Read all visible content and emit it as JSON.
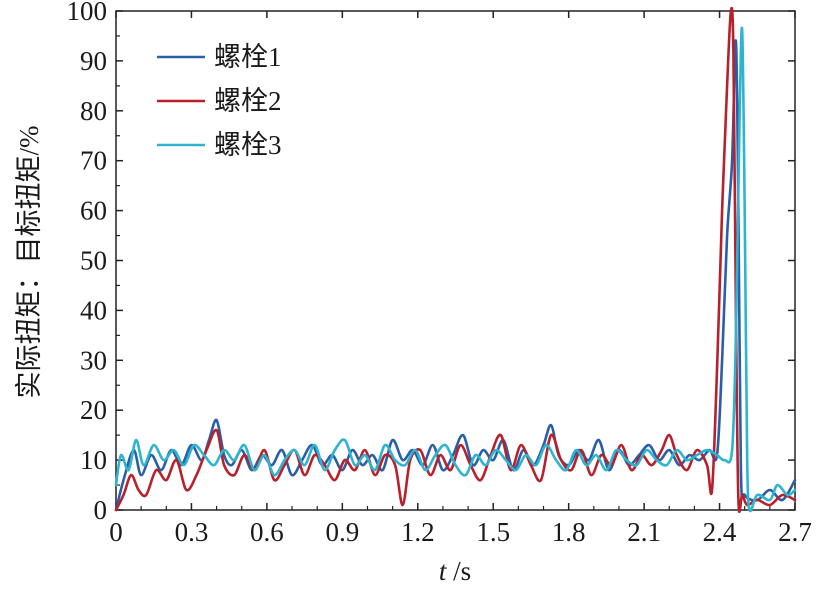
{
  "chart_data": {
    "type": "line",
    "xlabel_italic": "t",
    "xlabel_unit": " /s",
    "ylabel": "实际扭矩：目标扭矩/%",
    "xlim": [
      0,
      2.7
    ],
    "ylim": [
      0,
      100
    ],
    "x_ticks": [
      "0",
      "0.3",
      "0.6",
      "0.9",
      "1.2",
      "1.5",
      "1.8",
      "2.1",
      "2.4",
      "2.7"
    ],
    "y_ticks": [
      "0",
      "10",
      "20",
      "30",
      "40",
      "50",
      "60",
      "70",
      "80",
      "90",
      "100"
    ],
    "legend_position": "top-left",
    "grid": false,
    "series": [
      {
        "name": "螺栓1",
        "color": "#2a5fa8",
        "points": [
          [
            0.0,
            0
          ],
          [
            0.03,
            6
          ],
          [
            0.07,
            12
          ],
          [
            0.1,
            7
          ],
          [
            0.14,
            11
          ],
          [
            0.18,
            8
          ],
          [
            0.22,
            12
          ],
          [
            0.26,
            9
          ],
          [
            0.3,
            13
          ],
          [
            0.34,
            10
          ],
          [
            0.37,
            14
          ],
          [
            0.4,
            18
          ],
          [
            0.43,
            11
          ],
          [
            0.46,
            9
          ],
          [
            0.5,
            12
          ],
          [
            0.54,
            8
          ],
          [
            0.58,
            11
          ],
          [
            0.62,
            9
          ],
          [
            0.66,
            12
          ],
          [
            0.7,
            7
          ],
          [
            0.74,
            10
          ],
          [
            0.78,
            13
          ],
          [
            0.82,
            9
          ],
          [
            0.86,
            11
          ],
          [
            0.9,
            8
          ],
          [
            0.94,
            12
          ],
          [
            0.98,
            9
          ],
          [
            1.02,
            11
          ],
          [
            1.06,
            8
          ],
          [
            1.1,
            14
          ],
          [
            1.14,
            10
          ],
          [
            1.18,
            12
          ],
          [
            1.22,
            9
          ],
          [
            1.26,
            13
          ],
          [
            1.3,
            8
          ],
          [
            1.34,
            11
          ],
          [
            1.38,
            15
          ],
          [
            1.42,
            9
          ],
          [
            1.46,
            12
          ],
          [
            1.5,
            10
          ],
          [
            1.54,
            14
          ],
          [
            1.58,
            8
          ],
          [
            1.62,
            12
          ],
          [
            1.66,
            9
          ],
          [
            1.7,
            13
          ],
          [
            1.73,
            17
          ],
          [
            1.76,
            11
          ],
          [
            1.8,
            9
          ],
          [
            1.84,
            12
          ],
          [
            1.88,
            10
          ],
          [
            1.92,
            14
          ],
          [
            1.96,
            8
          ],
          [
            2.0,
            12
          ],
          [
            2.04,
            9
          ],
          [
            2.08,
            11
          ],
          [
            2.12,
            13
          ],
          [
            2.16,
            10
          ],
          [
            2.2,
            12
          ],
          [
            2.24,
            9
          ],
          [
            2.28,
            11
          ],
          [
            2.32,
            10
          ],
          [
            2.36,
            12
          ],
          [
            2.39,
            11
          ],
          [
            2.41,
            30
          ],
          [
            2.43,
            55
          ],
          [
            2.45,
            70
          ],
          [
            2.465,
            94
          ],
          [
            2.475,
            60
          ],
          [
            2.485,
            8
          ],
          [
            2.5,
            3
          ],
          [
            2.55,
            2
          ],
          [
            2.6,
            4
          ],
          [
            2.65,
            2
          ],
          [
            2.7,
            6
          ]
        ]
      },
      {
        "name": "螺栓2",
        "color": "#b8202c",
        "points": [
          [
            0.0,
            0
          ],
          [
            0.03,
            3
          ],
          [
            0.06,
            7
          ],
          [
            0.09,
            4
          ],
          [
            0.12,
            3
          ],
          [
            0.16,
            8
          ],
          [
            0.2,
            6
          ],
          [
            0.24,
            10
          ],
          [
            0.28,
            4
          ],
          [
            0.32,
            7
          ],
          [
            0.36,
            12
          ],
          [
            0.4,
            16
          ],
          [
            0.43,
            9
          ],
          [
            0.47,
            7
          ],
          [
            0.51,
            11
          ],
          [
            0.55,
            8
          ],
          [
            0.59,
            12
          ],
          [
            0.63,
            6
          ],
          [
            0.67,
            9
          ],
          [
            0.71,
            12
          ],
          [
            0.75,
            7
          ],
          [
            0.79,
            11
          ],
          [
            0.83,
            9
          ],
          [
            0.87,
            6
          ],
          [
            0.91,
            10
          ],
          [
            0.95,
            8
          ],
          [
            0.99,
            12
          ],
          [
            1.03,
            7
          ],
          [
            1.07,
            11
          ],
          [
            1.11,
            9
          ],
          [
            1.14,
            1
          ],
          [
            1.17,
            10
          ],
          [
            1.21,
            12
          ],
          [
            1.25,
            7
          ],
          [
            1.29,
            11
          ],
          [
            1.33,
            8
          ],
          [
            1.37,
            13
          ],
          [
            1.41,
            9
          ],
          [
            1.45,
            6
          ],
          [
            1.49,
            11
          ],
          [
            1.53,
            15
          ],
          [
            1.57,
            8
          ],
          [
            1.61,
            13
          ],
          [
            1.65,
            9
          ],
          [
            1.69,
            6
          ],
          [
            1.73,
            15
          ],
          [
            1.77,
            10
          ],
          [
            1.81,
            8
          ],
          [
            1.85,
            12
          ],
          [
            1.89,
            7
          ],
          [
            1.93,
            11
          ],
          [
            1.97,
            9
          ],
          [
            2.01,
            13
          ],
          [
            2.05,
            8
          ],
          [
            2.09,
            11
          ],
          [
            2.13,
            9
          ],
          [
            2.17,
            12
          ],
          [
            2.2,
            15
          ],
          [
            2.23,
            11
          ],
          [
            2.27,
            8
          ],
          [
            2.31,
            12
          ],
          [
            2.35,
            9
          ],
          [
            2.37,
            4
          ],
          [
            2.39,
            28
          ],
          [
            2.41,
            60
          ],
          [
            2.43,
            85
          ],
          [
            2.445,
            100
          ],
          [
            2.455,
            92
          ],
          [
            2.465,
            40
          ],
          [
            2.475,
            2
          ],
          [
            2.49,
            3
          ],
          [
            2.51,
            1
          ],
          [
            2.55,
            2
          ],
          [
            2.6,
            1
          ],
          [
            2.65,
            3
          ],
          [
            2.7,
            2
          ]
        ]
      },
      {
        "name": "螺栓3",
        "color": "#2fb4cf",
        "points": [
          [
            0.0,
            5
          ],
          [
            0.02,
            11
          ],
          [
            0.05,
            8
          ],
          [
            0.08,
            14
          ],
          [
            0.11,
            9
          ],
          [
            0.15,
            13
          ],
          [
            0.19,
            10
          ],
          [
            0.23,
            12
          ],
          [
            0.27,
            9
          ],
          [
            0.31,
            13
          ],
          [
            0.35,
            11
          ],
          [
            0.39,
            9
          ],
          [
            0.43,
            12
          ],
          [
            0.47,
            10
          ],
          [
            0.51,
            13
          ],
          [
            0.55,
            8
          ],
          [
            0.59,
            11
          ],
          [
            0.63,
            7
          ],
          [
            0.67,
            10
          ],
          [
            0.71,
            12
          ],
          [
            0.75,
            9
          ],
          [
            0.79,
            13
          ],
          [
            0.83,
            8
          ],
          [
            0.87,
            12
          ],
          [
            0.91,
            14
          ],
          [
            0.95,
            9
          ],
          [
            0.99,
            11
          ],
          [
            1.03,
            8
          ],
          [
            1.07,
            13
          ],
          [
            1.11,
            10
          ],
          [
            1.15,
            9
          ],
          [
            1.19,
            12
          ],
          [
            1.23,
            8
          ],
          [
            1.27,
            11
          ],
          [
            1.31,
            13
          ],
          [
            1.35,
            9
          ],
          [
            1.39,
            7
          ],
          [
            1.43,
            11
          ],
          [
            1.47,
            9
          ],
          [
            1.51,
            12
          ],
          [
            1.55,
            10
          ],
          [
            1.59,
            8
          ],
          [
            1.63,
            11
          ],
          [
            1.67,
            9
          ],
          [
            1.71,
            13
          ],
          [
            1.75,
            10
          ],
          [
            1.79,
            8
          ],
          [
            1.83,
            12
          ],
          [
            1.87,
            9
          ],
          [
            1.91,
            11
          ],
          [
            1.95,
            8
          ],
          [
            1.99,
            12
          ],
          [
            2.03,
            10
          ],
          [
            2.07,
            9
          ],
          [
            2.11,
            12
          ],
          [
            2.15,
            10
          ],
          [
            2.19,
            9
          ],
          [
            2.23,
            12
          ],
          [
            2.27,
            10
          ],
          [
            2.31,
            11
          ],
          [
            2.35,
            12
          ],
          [
            2.39,
            11
          ],
          [
            2.42,
            10
          ],
          [
            2.45,
            12
          ],
          [
            2.465,
            35
          ],
          [
            2.48,
            80
          ],
          [
            2.49,
            96
          ],
          [
            2.5,
            60
          ],
          [
            2.51,
            10
          ],
          [
            2.52,
            0
          ],
          [
            2.55,
            3
          ],
          [
            2.6,
            2
          ],
          [
            2.63,
            5
          ],
          [
            2.67,
            3
          ],
          [
            2.7,
            4
          ]
        ]
      }
    ]
  }
}
